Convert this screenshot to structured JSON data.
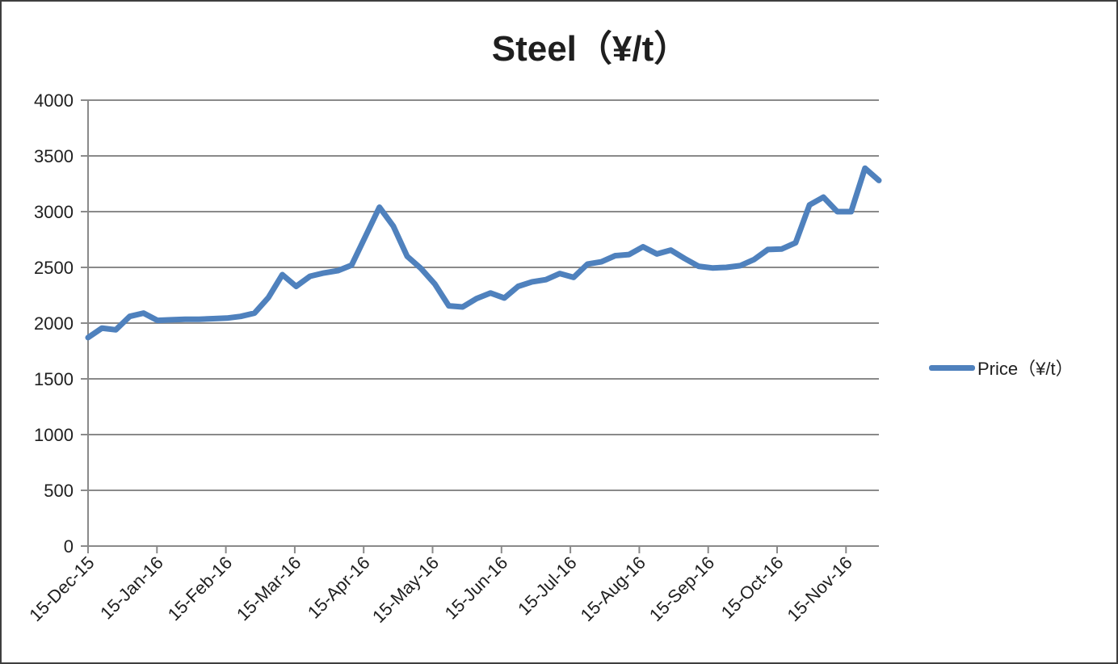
{
  "title": "Steel（¥/t）",
  "legend": {
    "label": "Price（¥/t）"
  },
  "colors": {
    "series_line": "#4F81BD",
    "gridline": "#8A8A8A",
    "axis": "#8A8A8A",
    "text": "#1F1F1F",
    "canvas_border": "#3F3F3F"
  },
  "chart_data": {
    "type": "line",
    "title": "Steel（¥/t）",
    "xlabel": "",
    "ylabel": "",
    "x_tick_labels": [
      "15-Dec-15",
      "15-Jan-16",
      "15-Feb-16",
      "15-Mar-16",
      "15-Apr-16",
      "15-May-16",
      "15-Jun-16",
      "15-Jul-16",
      "15-Aug-16",
      "15-Sep-16",
      "15-Oct-16",
      "15-Nov-16"
    ],
    "y_ticks": [
      0,
      500,
      1000,
      1500,
      2000,
      2500,
      3000,
      3500,
      4000
    ],
    "ylim": [
      0,
      4000
    ],
    "grid": "horizontal",
    "legend_position": "right-middle",
    "series": [
      {
        "name": "Price（¥/t）",
        "color": "#4F81BD",
        "values": [
          1870,
          1955,
          1940,
          2060,
          2090,
          2025,
          2030,
          2035,
          2035,
          2040,
          2045,
          2060,
          2090,
          2230,
          2435,
          2330,
          2420,
          2450,
          2470,
          2520,
          2780,
          3040,
          2870,
          2600,
          2490,
          2350,
          2155,
          2145,
          2220,
          2270,
          2225,
          2330,
          2370,
          2390,
          2445,
          2410,
          2530,
          2550,
          2605,
          2615,
          2685,
          2620,
          2655,
          2580,
          2510,
          2495,
          2500,
          2515,
          2570,
          2660,
          2665,
          2720,
          3060,
          3130,
          3000,
          3000,
          3390,
          3280
        ]
      }
    ]
  }
}
